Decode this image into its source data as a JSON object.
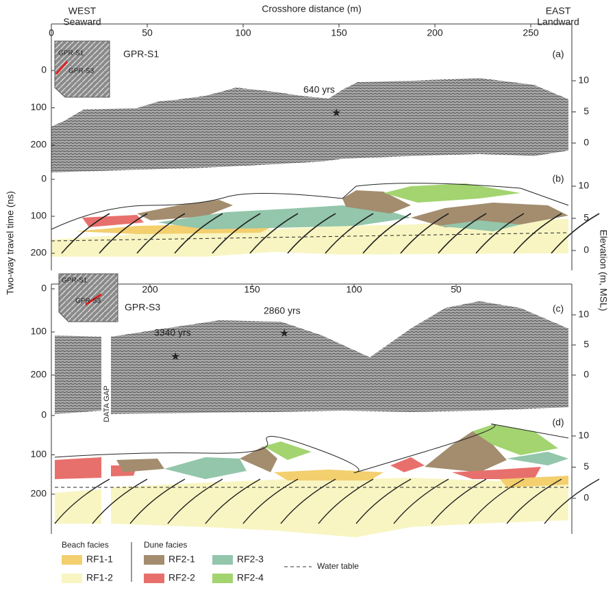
{
  "top_axis": {
    "title": "Crosshore distance (m)",
    "ticks": [
      0,
      50,
      100,
      150,
      200,
      250
    ],
    "left": {
      "title": "WEST",
      "subtitle": "Seaward"
    },
    "right": {
      "title": "EAST",
      "subtitle": "Landward"
    }
  },
  "bottom_axis": {
    "ticks": [
      200,
      150,
      100,
      50
    ]
  },
  "left_axis_title": "Two-way travel time (ns)",
  "right_axis_title": "Elevation (m, MSL)",
  "panels": [
    {
      "label": "(a)",
      "left_ticks": [
        0,
        100,
        200
      ],
      "right_ticks": [
        10,
        5,
        0
      ]
    },
    {
      "label": "(b)",
      "left_ticks": [
        0,
        100,
        200
      ],
      "right_ticks": [
        10,
        5,
        0
      ]
    },
    {
      "label": "(c)",
      "left_ticks": [
        0,
        100,
        200
      ],
      "right_ticks": [
        10,
        5,
        0
      ]
    },
    {
      "label": "(d)",
      "left_ticks": [
        0,
        100,
        200
      ],
      "right_ticks": [
        10,
        5,
        0
      ]
    }
  ],
  "profiles": [
    "GPR-S1",
    "GPR-S3"
  ],
  "insets": [
    {
      "labels": [
        "GPR-S1",
        "GPR-S3"
      ]
    },
    {
      "labels": [
        "GPR-S1",
        "GPR-S3"
      ]
    }
  ],
  "ages": [
    "640 yrs",
    "3340 yrs",
    "2860 yrs"
  ],
  "data_gap": "DATA GAP",
  "legend": {
    "beach_title": "Beach facies",
    "dune_title": "Dune facies",
    "items": [
      {
        "label": "RF1-1",
        "color": "#f3cf6e"
      },
      {
        "label": "RF1-2",
        "color": "#f8f5c2"
      },
      {
        "label": "RF2-1",
        "color": "#a38d6e"
      },
      {
        "label": "RF2-2",
        "color": "#e8706c"
      },
      {
        "label": "RF2-3",
        "color": "#93c6ab"
      },
      {
        "label": "RF2-4",
        "color": "#a3d470"
      }
    ],
    "water_table": "Water table"
  }
}
